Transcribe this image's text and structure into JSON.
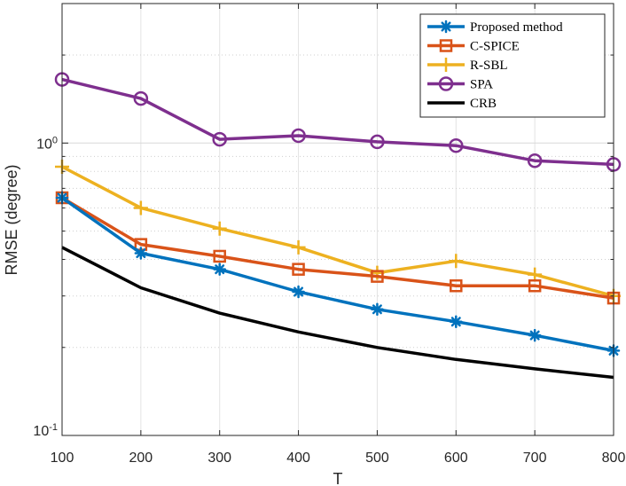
{
  "chart_data": {
    "type": "line",
    "xlabel": "T",
    "ylabel": "RMSE (degree)",
    "yscale": "log",
    "xlim": [
      100,
      800
    ],
    "ylim": [
      0.1,
      3
    ],
    "xticks": [
      100,
      200,
      300,
      400,
      500,
      600,
      700,
      800
    ],
    "xtick_labels": [
      "100",
      "200",
      "300",
      "400",
      "500",
      "600",
      "700",
      "800"
    ],
    "ytick_labels": [
      {
        "value": 1,
        "base": "10",
        "exp": "0"
      },
      {
        "value": 0.1,
        "base": "10",
        "exp": "-1"
      }
    ],
    "grid": true,
    "legend_position": "top-right",
    "x": [
      100,
      200,
      300,
      400,
      500,
      600,
      700,
      800
    ],
    "series": [
      {
        "name": "Proposed method",
        "color": "#0072BD",
        "marker": "asterisk",
        "values": [
          0.65,
          0.42,
          0.37,
          0.31,
          0.27,
          0.245,
          0.22,
          0.195
        ]
      },
      {
        "name": "C-SPICE",
        "color": "#D95319",
        "marker": "square",
        "values": [
          0.65,
          0.45,
          0.41,
          0.37,
          0.35,
          0.325,
          0.325,
          0.295
        ]
      },
      {
        "name": "R-SBL",
        "color": "#EDB120",
        "marker": "plus",
        "values": [
          0.83,
          0.6,
          0.51,
          0.44,
          0.36,
          0.395,
          0.355,
          0.3
        ]
      },
      {
        "name": "SPA",
        "color": "#7E2F8E",
        "marker": "circle",
        "values": [
          1.65,
          1.42,
          1.03,
          1.06,
          1.01,
          0.98,
          0.87,
          0.845
        ]
      },
      {
        "name": "CRB",
        "color": "#000000",
        "marker": "none",
        "values": [
          0.44,
          0.32,
          0.262,
          0.226,
          0.2,
          0.182,
          0.169,
          0.158
        ]
      }
    ]
  }
}
